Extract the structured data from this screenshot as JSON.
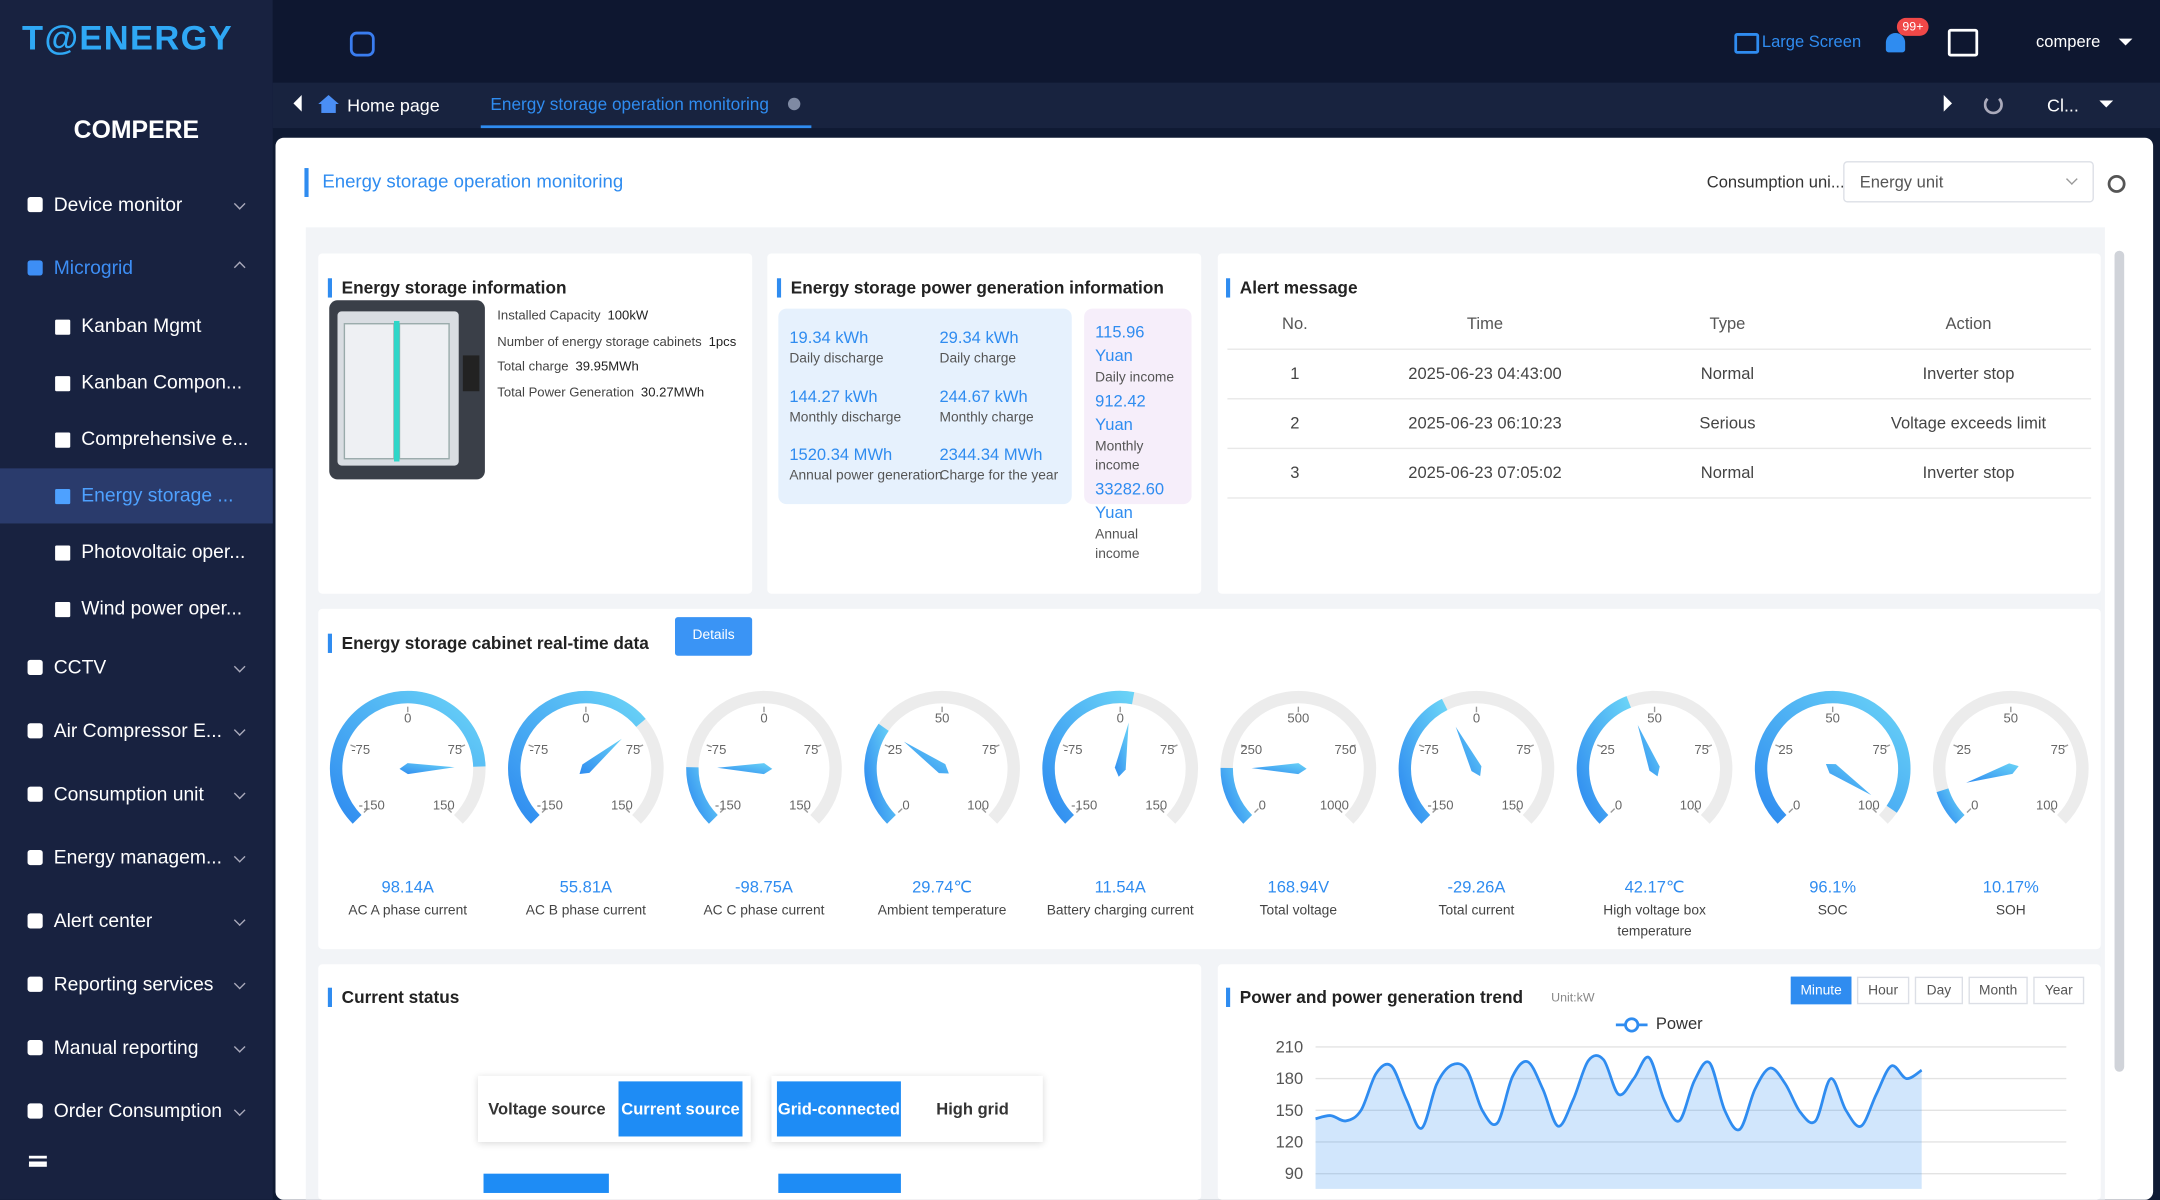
{
  "header": {
    "logo": "T@ENERGY",
    "company": "COMPERE",
    "large_screen": "Large Screen",
    "badge": "99+",
    "user": "compere"
  },
  "sidebar": {
    "items": [
      {
        "label": "Device monitor"
      },
      {
        "label": "Microgrid",
        "open": true,
        "children": [
          {
            "label": "Kanban Mgmt"
          },
          {
            "label": "Kanban Compon..."
          },
          {
            "label": "Comprehensive e..."
          },
          {
            "label": "Energy storage ...",
            "active": true
          },
          {
            "label": "Photovoltaic oper..."
          },
          {
            "label": "Wind power oper..."
          }
        ]
      },
      {
        "label": "CCTV"
      },
      {
        "label": "Air Compressor E..."
      },
      {
        "label": "Consumption unit"
      },
      {
        "label": "Energy managem..."
      },
      {
        "label": "Alert center"
      },
      {
        "label": "Reporting services"
      },
      {
        "label": "Manual reporting"
      },
      {
        "label": "Order Consumption"
      }
    ]
  },
  "tabs": {
    "home": "Home page",
    "active": "Energy storage operation monitoring",
    "close": "Cl..."
  },
  "page": {
    "title": "Energy storage operation monitoring",
    "filter_label": "Consumption uni...",
    "filter_value": "Energy unit"
  },
  "storage_info": {
    "title": "Energy storage information",
    "rows": [
      {
        "label": "Installed Capacity",
        "value": "100kW"
      },
      {
        "label": "Number of energy storage cabinets",
        "value": "1pcs"
      },
      {
        "label": "Total charge",
        "value": "39.95MWh"
      },
      {
        "label": "Total Power Generation",
        "value": "30.27MWh"
      }
    ]
  },
  "generation_info": {
    "title": "Energy storage power generation information",
    "items": [
      {
        "value": "19.34 kWh",
        "label": "Daily discharge"
      },
      {
        "value": "29.34 kWh",
        "label": "Daily charge"
      },
      {
        "value": "144.27 kWh",
        "label": "Monthly discharge"
      },
      {
        "value": "244.67 kWh",
        "label": "Monthly charge"
      },
      {
        "value": "1520.34 MWh",
        "label": "Annual power generation"
      },
      {
        "value": "2344.34 MWh",
        "label": "Charge for the year"
      }
    ],
    "income": [
      {
        "value": "115.96 Yuan",
        "label": "Daily income"
      },
      {
        "value": "912.42 Yuan",
        "label": "Monthly income"
      },
      {
        "value": "33282.60 Yuan",
        "label": "Annual income"
      }
    ]
  },
  "alerts": {
    "title": "Alert message",
    "columns": [
      "No.",
      "Time",
      "Type",
      "Action"
    ],
    "rows": [
      [
        "1",
        "2025-06-23 04:43:00",
        "Normal",
        "Inverter stop"
      ],
      [
        "2",
        "2025-06-23 06:10:23",
        "Serious",
        "Voltage exceeds limit"
      ],
      [
        "3",
        "2025-06-23 07:05:02",
        "Normal",
        "Inverter stop"
      ]
    ]
  },
  "realtime": {
    "title": "Energy storage cabinet real-time data",
    "details": "Details",
    "gauges": [
      {
        "label": "AC A phase current",
        "value": 98.14,
        "value_label": "98.14A",
        "range": [
          -150,
          150
        ],
        "ticks": [
          -150,
          -75,
          0,
          75,
          150
        ]
      },
      {
        "label": "AC B phase current",
        "value": 55.81,
        "value_label": "55.81A",
        "range": [
          -150,
          150
        ],
        "ticks": [
          -150,
          -75,
          0,
          75,
          150
        ]
      },
      {
        "label": "AC C phase current",
        "value": -98.75,
        "value_label": "-98.75A",
        "range": [
          -150,
          150
        ],
        "ticks": [
          -150,
          -75,
          0,
          75,
          150
        ]
      },
      {
        "label": "Ambient temperature",
        "value": 29.74,
        "value_label": "29.74℃",
        "range": [
          0,
          100
        ],
        "ticks": [
          0,
          25,
          50,
          75,
          100
        ]
      },
      {
        "label": "Battery charging current",
        "value": 11.54,
        "value_label": "11.54A",
        "range": [
          -150,
          150
        ],
        "ticks": [
          -150,
          -75,
          0,
          75,
          150
        ]
      },
      {
        "label": "Total voltage",
        "value": 168.94,
        "value_label": "168.94V",
        "range": [
          0,
          1000
        ],
        "ticks": [
          0,
          250,
          500,
          750,
          1000
        ]
      },
      {
        "label": "Total current",
        "value": -29.26,
        "value_label": "-29.26A",
        "range": [
          -150,
          150
        ],
        "ticks": [
          -150,
          -75,
          0,
          75,
          150
        ]
      },
      {
        "label": "High voltage box temperature",
        "value": 42.17,
        "value_label": "42.17℃",
        "range": [
          0,
          100
        ],
        "ticks": [
          0,
          25,
          50,
          75,
          100
        ]
      },
      {
        "label": "SOC",
        "value": 96.1,
        "value_label": "96.1%",
        "range": [
          0,
          100
        ],
        "ticks": [
          0,
          25,
          50,
          75,
          100
        ]
      },
      {
        "label": "SOH",
        "value": 10.17,
        "value_label": "10.17%",
        "range": [
          0,
          100
        ],
        "ticks": [
          0,
          25,
          50,
          75,
          100
        ]
      }
    ]
  },
  "status": {
    "title": "Current status",
    "groups": [
      [
        {
          "label": "Voltage source"
        },
        {
          "label": "Current source",
          "active": true
        }
      ],
      [
        {
          "label": "Grid-connected",
          "active": true
        },
        {
          "label": "High grid"
        }
      ]
    ]
  },
  "chart_data": {
    "type": "line",
    "title": "Power and power generation trend",
    "unit": "Unit:kW",
    "periods": [
      {
        "label": "Minute",
        "active": true
      },
      {
        "label": "Hour"
      },
      {
        "label": "Day"
      },
      {
        "label": "Month"
      },
      {
        "label": "Year"
      }
    ],
    "series": [
      {
        "name": "Power",
        "color": "#2f8cf0",
        "values": [
          142,
          145,
          140,
          150,
          185,
          192,
          160,
          133,
          175,
          193,
          188,
          150,
          138,
          182,
          196,
          170,
          135,
          160,
          197,
          198,
          165,
          180,
          200,
          160,
          140,
          178,
          195,
          150,
          132,
          170,
          190,
          175,
          148,
          140,
          180,
          150,
          135,
          165,
          192,
          180,
          188
        ]
      }
    ],
    "ylim": [
      90,
      210
    ],
    "yticks": [
      90,
      120,
      150,
      180,
      210
    ],
    "grid": true
  }
}
